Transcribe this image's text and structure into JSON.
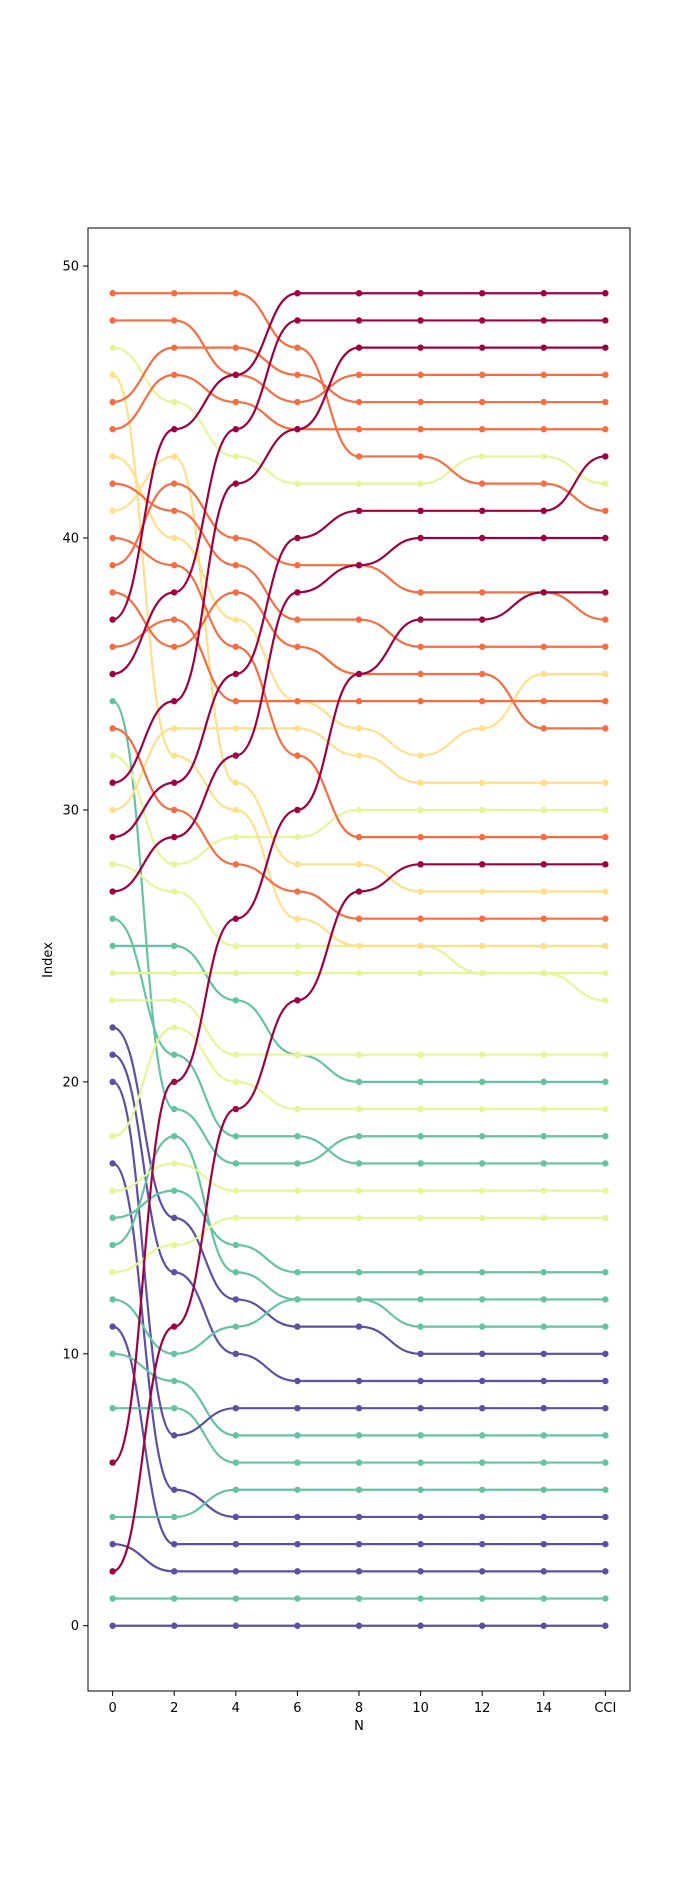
{
  "chart_data": {
    "type": "line",
    "title": "",
    "xlabel": "N",
    "ylabel": "Index",
    "x_positions": [
      0,
      2,
      4,
      6,
      8,
      10,
      12,
      14,
      16
    ],
    "x_tick_labels": [
      "0",
      "2",
      "4",
      "6",
      "8",
      "10",
      "12",
      "14",
      "CCI"
    ],
    "xlim": [
      -0.8,
      16.8
    ],
    "ylim": [
      -2.4,
      51.4
    ],
    "y_ticks": [
      0,
      10,
      20,
      30,
      40,
      50
    ],
    "grid": false,
    "legend": "none",
    "palette": {
      "purple": "#5e4fa2",
      "teal": "#66c2a5",
      "lime": "#e6f598",
      "yellow": "#fee08b",
      "orange": "#f46d43",
      "crimson": "#9e0142"
    },
    "lines": [
      {
        "color": "purple",
        "y": [
          0,
          0,
          0,
          0,
          0,
          0,
          0,
          0,
          0
        ]
      },
      {
        "color": "teal",
        "y": [
          1,
          1,
          1,
          1,
          1,
          1,
          1,
          1,
          1
        ]
      },
      {
        "color": "purple",
        "y": [
          3,
          2,
          2,
          2,
          2,
          2,
          2,
          2,
          2
        ]
      },
      {
        "color": "purple",
        "y": [
          11,
          3,
          3,
          3,
          3,
          3,
          3,
          3,
          3
        ]
      },
      {
        "color": "purple",
        "y": [
          17,
          5,
          4,
          4,
          4,
          4,
          4,
          4,
          4
        ]
      },
      {
        "color": "teal",
        "y": [
          4,
          4,
          5,
          5,
          5,
          5,
          5,
          5,
          5
        ]
      },
      {
        "color": "teal",
        "y": [
          8,
          8,
          6,
          6,
          6,
          6,
          6,
          6,
          6
        ]
      },
      {
        "color": "teal",
        "y": [
          10,
          9,
          7,
          7,
          7,
          7,
          7,
          7,
          7
        ]
      },
      {
        "color": "purple",
        "y": [
          20,
          7,
          8,
          8,
          8,
          8,
          8,
          8,
          8
        ]
      },
      {
        "color": "purple",
        "y": [
          21,
          13,
          10,
          9,
          9,
          9,
          9,
          9,
          9
        ]
      },
      {
        "color": "purple",
        "y": [
          22,
          15,
          12,
          11,
          11,
          10,
          10,
          10,
          10
        ]
      },
      {
        "color": "teal",
        "y": [
          12,
          10,
          11,
          12,
          12,
          11,
          11,
          11,
          11
        ]
      },
      {
        "color": "teal",
        "y": [
          14,
          18,
          13,
          12,
          12,
          12,
          12,
          12,
          12
        ]
      },
      {
        "color": "teal",
        "y": [
          15,
          16,
          14,
          13,
          13,
          13,
          13,
          13,
          13
        ]
      },
      {
        "color": "teal",
        "y": [
          25,
          25,
          23,
          21,
          20,
          20,
          20,
          20,
          20
        ]
      },
      {
        "color": "teal",
        "y": [
          26,
          21,
          18,
          18,
          17,
          17,
          17,
          17,
          17
        ]
      },
      {
        "color": "teal",
        "y": [
          34,
          19,
          17,
          17,
          18,
          18,
          18,
          18,
          18
        ]
      },
      {
        "color": "lime",
        "y": [
          13,
          14,
          15,
          15,
          15,
          15,
          15,
          15,
          15
        ]
      },
      {
        "color": "lime",
        "y": [
          16,
          17,
          16,
          16,
          16,
          16,
          16,
          16,
          16
        ]
      },
      {
        "color": "lime",
        "y": [
          18,
          22,
          20,
          19,
          19,
          19,
          19,
          19,
          19
        ]
      },
      {
        "color": "lime",
        "y": [
          23,
          23,
          21,
          21,
          21,
          21,
          21,
          21,
          21
        ]
      },
      {
        "color": "lime",
        "y": [
          24,
          24,
          24,
          24,
          24,
          24,
          24,
          24,
          24
        ]
      },
      {
        "color": "lime",
        "y": [
          28,
          27,
          25,
          25,
          25,
          25,
          24,
          24,
          23
        ]
      },
      {
        "color": "lime",
        "y": [
          32,
          28,
          29,
          29,
          30,
          30,
          30,
          30,
          30
        ]
      },
      {
        "color": "lime",
        "y": [
          47,
          45,
          43,
          42,
          42,
          42,
          43,
          43,
          42
        ]
      },
      {
        "color": "yellow",
        "y": [
          30,
          33,
          33,
          33,
          32,
          31,
          31,
          31,
          31
        ]
      },
      {
        "color": "yellow",
        "y": [
          41,
          43,
          31,
          28,
          28,
          27,
          27,
          27,
          27
        ]
      },
      {
        "color": "yellow",
        "y": [
          43,
          40,
          37,
          34,
          33,
          32,
          33,
          35,
          35
        ]
      },
      {
        "color": "yellow",
        "y": [
          46,
          32,
          30,
          26,
          25,
          25,
          25,
          25,
          25
        ]
      },
      {
        "color": "orange",
        "y": [
          33,
          30,
          28,
          27,
          26,
          26,
          26,
          26,
          26
        ]
      },
      {
        "color": "orange",
        "y": [
          36,
          37,
          34,
          34,
          34,
          34,
          34,
          34,
          34
        ]
      },
      {
        "color": "orange",
        "y": [
          38,
          36,
          38,
          36,
          35,
          35,
          35,
          33,
          33
        ]
      },
      {
        "color": "orange",
        "y": [
          39,
          42,
          40,
          39,
          39,
          38,
          38,
          38,
          37
        ]
      },
      {
        "color": "orange",
        "y": [
          40,
          39,
          36,
          32,
          29,
          29,
          29,
          29,
          29
        ]
      },
      {
        "color": "orange",
        "y": [
          42,
          41,
          39,
          37,
          37,
          36,
          36,
          36,
          36
        ]
      },
      {
        "color": "orange",
        "y": [
          44,
          46,
          45,
          44,
          44,
          44,
          44,
          44,
          44
        ]
      },
      {
        "color": "orange",
        "y": [
          45,
          47,
          47,
          46,
          45,
          45,
          45,
          45,
          45
        ]
      },
      {
        "color": "orange",
        "y": [
          48,
          48,
          46,
          45,
          46,
          46,
          46,
          46,
          46
        ]
      },
      {
        "color": "orange",
        "y": [
          49,
          49,
          49,
          47,
          43,
          43,
          42,
          42,
          41
        ]
      },
      {
        "color": "crimson",
        "y": [
          2,
          11,
          19,
          23,
          27,
          28,
          28,
          28,
          28
        ]
      },
      {
        "color": "crimson",
        "y": [
          6,
          20,
          26,
          30,
          35,
          37,
          37,
          38,
          38
        ]
      },
      {
        "color": "crimson",
        "y": [
          27,
          29,
          32,
          38,
          39,
          40,
          40,
          40,
          40
        ]
      },
      {
        "color": "crimson",
        "y": [
          29,
          31,
          35,
          40,
          41,
          41,
          41,
          41,
          43
        ]
      },
      {
        "color": "crimson",
        "y": [
          31,
          34,
          42,
          44,
          47,
          47,
          47,
          47,
          47
        ]
      },
      {
        "color": "crimson",
        "y": [
          35,
          38,
          44,
          48,
          48,
          48,
          48,
          48,
          48
        ]
      },
      {
        "color": "crimson",
        "y": [
          37,
          44,
          46,
          49,
          49,
          49,
          49,
          49,
          49
        ]
      }
    ]
  }
}
